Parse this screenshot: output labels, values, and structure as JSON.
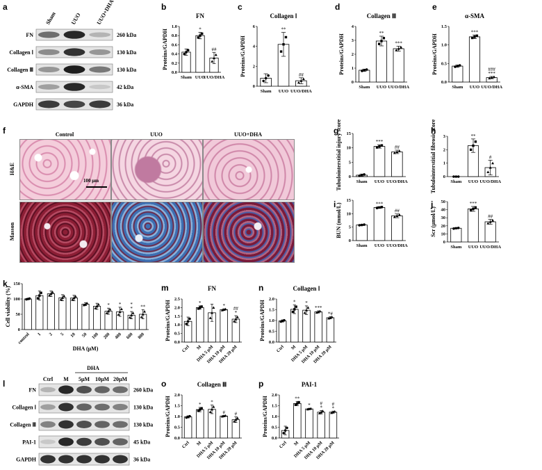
{
  "panel_letters": {
    "a": "a",
    "b": "b",
    "c": "c",
    "d": "d",
    "e": "e",
    "f": "f",
    "g": "g",
    "h": "h",
    "i": "i",
    "j": "j",
    "k": "k",
    "l": "l",
    "m": "m",
    "n": "n",
    "o": "o",
    "p": "p"
  },
  "blot_a": {
    "lanes": [
      "Sham",
      "UUO",
      "UUO+DHA"
    ],
    "rows": [
      {
        "name": "FN",
        "kda": "260 kDa",
        "intens": [
          0.55,
          0.9,
          0.2
        ]
      },
      {
        "name": "Collagen Ⅰ",
        "kda": "130 kDa",
        "intens": [
          0.4,
          0.85,
          0.35
        ]
      },
      {
        "name": "Collagen Ⅲ",
        "kda": "130 kDa",
        "intens": [
          0.35,
          0.95,
          0.5
        ]
      },
      {
        "name": "α-SMA",
        "kda": "42 kDa",
        "intens": [
          0.3,
          0.9,
          0.1
        ]
      },
      {
        "name": "GAPDH",
        "kda": "36 kDa",
        "intens": [
          0.8,
          0.75,
          0.8
        ]
      }
    ]
  },
  "blot_l": {
    "group_label": "DHA",
    "lanes": [
      "Ctrl",
      "M",
      "5μM",
      "10μM",
      "20μM"
    ],
    "rows": [
      {
        "name": "FN",
        "kda": "260 kDa",
        "intens": [
          0.2,
          0.9,
          0.7,
          0.6,
          0.55
        ]
      },
      {
        "name": "Collagen Ⅰ",
        "kda": "130 kDa",
        "intens": [
          0.3,
          0.85,
          0.6,
          0.55,
          0.45
        ]
      },
      {
        "name": "Collagen Ⅲ",
        "kda": "130 kDa",
        "intens": [
          0.45,
          0.85,
          0.7,
          0.6,
          0.55
        ]
      },
      {
        "name": "PAI-1",
        "kda": "45 kDa",
        "intens": [
          0.1,
          0.9,
          0.8,
          0.7,
          0.6
        ]
      },
      {
        "name": "GAPDH",
        "kda": "36 kDa",
        "intens": [
          0.85,
          0.85,
          0.85,
          0.85,
          0.85
        ]
      }
    ]
  },
  "histology": {
    "columns": [
      "Control",
      "UUO",
      "UUO+DHA"
    ],
    "rows": [
      "H&E",
      "Masson"
    ],
    "scale_bar": "100 μm",
    "colors": {
      "he_bg": "#f1c6d4",
      "he_cell": "#b45a8c",
      "masson_bg": "#7b1a2b",
      "masson_blue": "#3d6fb2"
    }
  },
  "chart_data": [
    {
      "id": "b",
      "type": "bar",
      "title": "FN",
      "ylabel": "Proteins/GAPDH",
      "categories": [
        "Sham",
        "UUO",
        "UUO/DHA"
      ],
      "values": [
        0.44,
        0.8,
        0.31
      ],
      "errors": [
        0.07,
        0.07,
        0.12
      ],
      "ylim": [
        0,
        1.0
      ],
      "yticks": [
        "0.0",
        "0.2",
        "0.4",
        "0.6",
        "0.8",
        "1.0"
      ],
      "sig": [
        "",
        "*",
        "##"
      ]
    },
    {
      "id": "c",
      "type": "bar",
      "title": "Collagen Ⅰ",
      "ylabel": "Proteins/GAPDH",
      "categories": [
        "Sham",
        "UUO",
        "UUO/DHA"
      ],
      "values": [
        0.8,
        4.2,
        0.55
      ],
      "errors": [
        0.45,
        1.2,
        0.3
      ],
      "ylim": [
        0,
        6
      ],
      "yticks": [
        "0",
        "2",
        "4",
        "6"
      ],
      "sig": [
        "",
        "**",
        "##"
      ]
    },
    {
      "id": "d",
      "type": "bar",
      "title": "Collagen Ⅲ",
      "ylabel": "Proteins/GAPDH",
      "categories": [
        "Sham",
        "UUO",
        "UUO/DHA"
      ],
      "values": [
        0.85,
        2.95,
        2.4
      ],
      "errors": [
        0.08,
        0.35,
        0.18
      ],
      "ylim": [
        0,
        4
      ],
      "yticks": [
        "0",
        "1",
        "2",
        "3",
        "4"
      ],
      "sig": [
        "",
        "**",
        "***"
      ]
    },
    {
      "id": "e",
      "type": "bar",
      "title": "α-SMA",
      "ylabel": "Proteins/GAPDH",
      "categories": [
        "Sham",
        "UUO",
        "UUO/DHA"
      ],
      "values": [
        0.43,
        1.22,
        0.12
      ],
      "errors": [
        0.03,
        0.05,
        0.03
      ],
      "ylim": [
        0,
        1.5
      ],
      "yticks": [
        "0.0",
        "0.5",
        "1.0",
        "1.5"
      ],
      "sig": [
        "",
        "***",
        "###\n***"
      ]
    },
    {
      "id": "g",
      "type": "bar",
      "title": "",
      "ylabel": "Tubulointerstitial injury score",
      "categories": [
        "Sham",
        "UUO",
        "UUO/DHA"
      ],
      "values": [
        0.5,
        10.5,
        8.6
      ],
      "errors": [
        0.4,
        0.6,
        0.6
      ],
      "ylim": [
        0,
        15
      ],
      "yticks": [
        "0",
        "5",
        "10",
        "15"
      ],
      "sig": [
        "",
        "***",
        "##"
      ]
    },
    {
      "id": "h",
      "type": "bar",
      "title": "",
      "ylabel": "Tubulointerstitial fibrosis score",
      "categories": [
        "Sham",
        "UUO",
        "UUO/DHA"
      ],
      "values": [
        0.0,
        2.3,
        0.67
      ],
      "errors": [
        0,
        0.5,
        0.55
      ],
      "ylim": [
        0,
        3
      ],
      "yticks": [
        "0",
        "1",
        "2",
        "3"
      ],
      "sig": [
        "",
        "**",
        "#"
      ]
    },
    {
      "id": "i",
      "type": "bar",
      "title": "",
      "ylabel": "BUN (mmol/L)",
      "categories": [
        "Sham",
        "UUO",
        "UUO/DHA"
      ],
      "values": [
        5.8,
        12.3,
        9.2
      ],
      "errors": [
        0.2,
        0.3,
        0.7
      ],
      "ylim": [
        0,
        15
      ],
      "yticks": [
        "0",
        "5",
        "10",
        "15"
      ],
      "sig": [
        "",
        "***",
        "##"
      ]
    },
    {
      "id": "j",
      "type": "bar",
      "title": "",
      "ylabel": "Scr (μmol/L)",
      "categories": [
        "Sham",
        "UUO",
        "UUO/DHA"
      ],
      "values": [
        17,
        41,
        25
      ],
      "errors": [
        0.7,
        3,
        3
      ],
      "ylim": [
        0,
        50
      ],
      "yticks": [
        "0",
        "10",
        "20",
        "30",
        "40",
        "50"
      ],
      "sig": [
        "",
        "***",
        "##"
      ]
    },
    {
      "id": "k",
      "type": "bar",
      "title": "",
      "ylabel": "Cell viability (%)",
      "xlabel": "DHA (μM)",
      "categories": [
        "control",
        "1",
        "2",
        "5",
        "10",
        "50",
        "100",
        "200",
        "400",
        "600",
        "800"
      ],
      "values": [
        100,
        111,
        117,
        104,
        103,
        83,
        76,
        60,
        58,
        47,
        50
      ],
      "errors": [
        2,
        15,
        9,
        10,
        9,
        5,
        10,
        10,
        15,
        12,
        15
      ],
      "ylim": [
        0,
        150
      ],
      "yticks": [
        "0",
        "50",
        "100",
        "150"
      ],
      "sig": [
        "",
        "",
        "",
        "",
        "",
        "",
        "",
        "*",
        "*",
        "*\n*",
        "**"
      ]
    },
    {
      "id": "m",
      "type": "bar",
      "title": "FN",
      "ylabel": "Proteins/GAPDH",
      "categories": [
        "Ctrl",
        "M",
        "DHA 5 μM",
        "DHA 10 μM",
        "DHA 20 μM"
      ],
      "values": [
        1.2,
        2.0,
        1.7,
        1.88,
        1.33
      ],
      "errors": [
        0.25,
        0.1,
        0.5,
        0.05,
        0.2
      ],
      "ylim": [
        0,
        2.5
      ],
      "yticks": [
        "0.0",
        "0.5",
        "1.0",
        "1.5",
        "2.0",
        "2.5"
      ],
      "sig": [
        "",
        "*",
        "",
        "*",
        "##\n*"
      ]
    },
    {
      "id": "n",
      "type": "bar",
      "title": "Collagen Ⅰ",
      "ylabel": "Proteins/GAPDH",
      "categories": [
        "Ctrl",
        "M",
        "DHA 5 μM",
        "DHA 10 μM",
        "DHA 20 μM"
      ],
      "values": [
        0.98,
        1.52,
        1.48,
        1.4,
        1.13
      ],
      "errors": [
        0.05,
        0.2,
        0.2,
        0.05,
        0.05
      ],
      "ylim": [
        0,
        2.0
      ],
      "yticks": [
        "0.0",
        "0.5",
        "1.0",
        "1.5",
        "2.0"
      ],
      "sig": [
        "",
        "*",
        "*",
        "***",
        "*#"
      ]
    },
    {
      "id": "o",
      "type": "bar",
      "title": "Collagen Ⅲ",
      "ylabel": "Proteins/GAPDH",
      "categories": [
        "Ctrl",
        "M",
        "DHA 5 μM",
        "DHA 10 μM",
        "DHA 20 μM"
      ],
      "values": [
        0.98,
        1.32,
        1.33,
        1.02,
        0.85
      ],
      "errors": [
        0.05,
        0.1,
        0.2,
        0.03,
        0.13
      ],
      "ylim": [
        0,
        2.0
      ],
      "yticks": [
        "0.0",
        "0.5",
        "1.0",
        "1.5",
        "2.0"
      ],
      "sig": [
        "",
        "*",
        "*",
        "#",
        "#"
      ]
    },
    {
      "id": "p",
      "type": "bar",
      "title": "PAI-1",
      "ylabel": "Proteins/GAPDH",
      "categories": [
        "Ctrl",
        "M",
        "DHA 5 μM",
        "DHA 10 μM",
        "DHA 20 μM"
      ],
      "values": [
        0.35,
        1.6,
        1.35,
        1.2,
        1.2
      ],
      "errors": [
        0.2,
        0.1,
        0.03,
        0.08,
        0.05
      ],
      "ylim": [
        0,
        2.0
      ],
      "yticks": [
        "0.0",
        "0.5",
        "1.0",
        "1.5",
        "2.0"
      ],
      "sig": [
        "",
        "**",
        "*",
        "#\n*",
        "#\n*"
      ]
    }
  ]
}
